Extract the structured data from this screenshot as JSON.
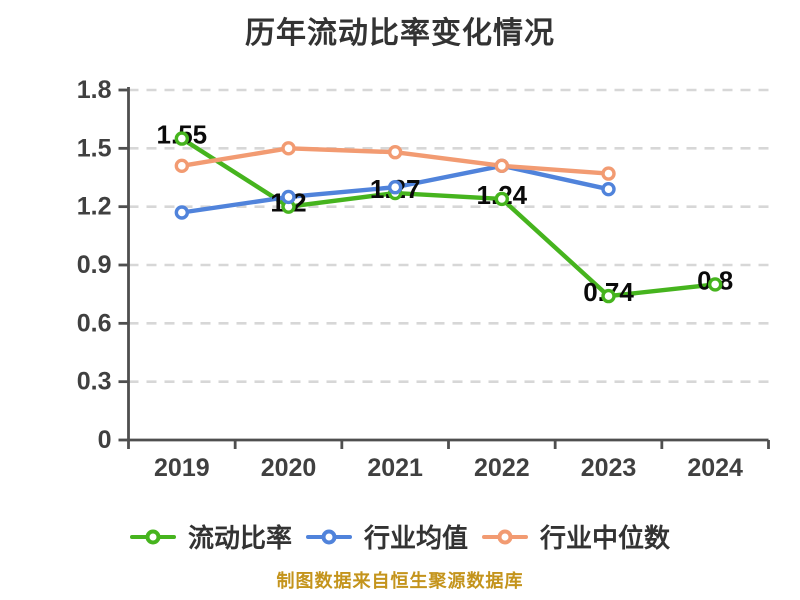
{
  "chart_data": {
    "type": "line",
    "title": "历年流动比率变化情况",
    "caption": "制图数据来自恒生聚源数据库",
    "categories": [
      "2019",
      "2020",
      "2021",
      "2022",
      "2023",
      "2024"
    ],
    "series": [
      {
        "key": "current-ratio",
        "name": "流动比率",
        "color": "#46B41E",
        "values": [
          1.55,
          1.2,
          1.27,
          1.24,
          0.74,
          0.8
        ],
        "data_labels": [
          "1.55",
          "1.2",
          "1.27",
          "1.24",
          "0.74",
          "0.8"
        ]
      },
      {
        "key": "industry-average",
        "name": "行业均值",
        "color": "#5083DB",
        "values": [
          1.17,
          1.25,
          1.3,
          1.41,
          1.29,
          null
        ],
        "data_labels": null
      },
      {
        "key": "industry-median",
        "name": "行业中位数",
        "color": "#F29B72",
        "values": [
          1.41,
          1.5,
          1.48,
          1.41,
          1.37,
          null
        ],
        "data_labels": null
      }
    ],
    "ylim": [
      0,
      1.8
    ],
    "yticks": [
      0,
      0.3,
      0.6,
      0.9,
      1.2,
      1.5,
      1.8
    ],
    "ytick_labels": [
      "0",
      "0.3",
      "0.6",
      "0.9",
      "1.2",
      "1.5",
      "1.8"
    ],
    "grid": "horizontal-dashed",
    "legend_position": "bottom"
  },
  "style": {
    "background": "#ffffff",
    "grid_color": "#d7d7d7",
    "axis_color": "#4f4f4f",
    "tick_label_color": "#404040",
    "data_label_color": "#0a0a0a",
    "title_color": "#333333",
    "legend_text_color": "#333333",
    "caption_color": "#c4941c"
  }
}
